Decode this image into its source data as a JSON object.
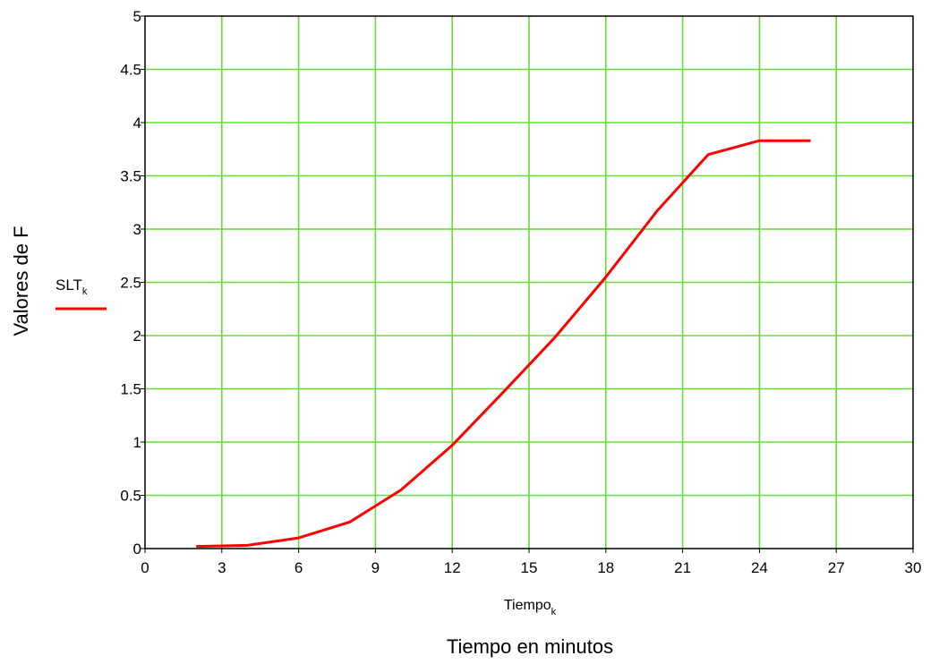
{
  "chart_data": {
    "type": "line",
    "xlabel": "Tiempo",
    "xlabel_sub": "k",
    "xlabel2": "Tiempo en minutos",
    "ylabel": "Valores de F",
    "xlim": [
      0,
      30
    ],
    "ylim": [
      0,
      5
    ],
    "xticks": [
      0,
      3,
      6,
      9,
      12,
      15,
      18,
      21,
      24,
      27,
      30
    ],
    "yticks": [
      0,
      0.5,
      1,
      1.5,
      2,
      2.5,
      3,
      3.5,
      4,
      4.5,
      5
    ],
    "grid": true,
    "legend_position": "left",
    "colors": {
      "series": "#ff0000",
      "grid": "#66dd33",
      "axes": "#000000"
    },
    "series": [
      {
        "name": "SLT",
        "name_sub": "k",
        "x": [
          2,
          4,
          6,
          8,
          10,
          12,
          14,
          16,
          18,
          20,
          22,
          24,
          26
        ],
        "y": [
          0.02,
          0.03,
          0.1,
          0.25,
          0.55,
          0.97,
          1.47,
          1.98,
          2.55,
          3.17,
          3.7,
          3.83,
          3.83
        ]
      }
    ]
  }
}
